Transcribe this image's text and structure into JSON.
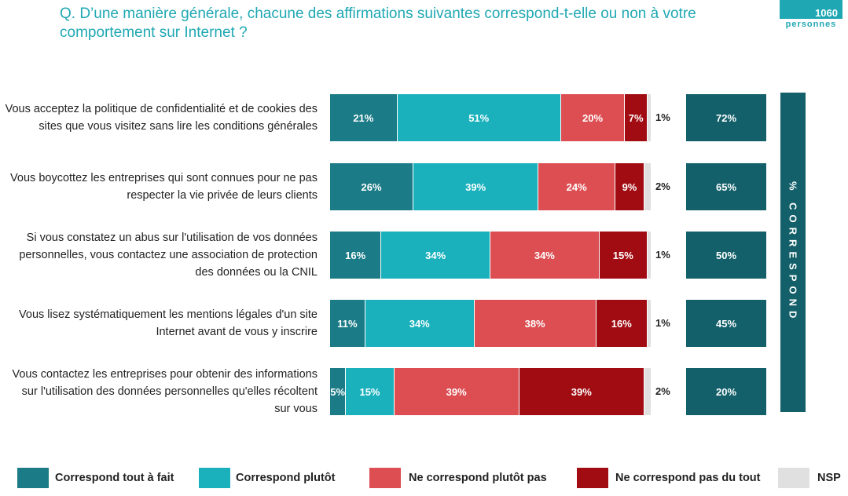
{
  "chart_data": {
    "type": "bar",
    "orientation": "horizontal",
    "stacked": true,
    "title": "Q. D’une manière générale, chacune des affirmations suivantes correspond-t-elle ou non à votre comportement sur Internet ?",
    "badge": {
      "count": "1060",
      "unit": "personnes"
    },
    "categories": [
      "Vous acceptez la politique de confidentialité et de cookies des sites que vous visitez sans lire les conditions générales",
      "Vous boycottez les entreprises qui sont connues pour ne pas respecter la vie privée de leurs clients",
      "Si vous constatez un abus sur l'utilisation de vos données personnelles, vous contactez une association de protection des données ou la CNIL",
      "Vous lisez systématiquement les mentions légales d'un site Internet avant de vous y inscrire",
      "Vous contactez les entreprises pour obtenir des informations sur l'utilisation des données personnelles qu'elles récoltent sur vous"
    ],
    "series": [
      {
        "name": "Correspond tout à fait",
        "color": "#1b7b86",
        "values": [
          21,
          26,
          16,
          11,
          5
        ],
        "value_labels": [
          "21%",
          "26%",
          "16%",
          "11%",
          "5%"
        ]
      },
      {
        "name": "Correspond plutôt",
        "color": "#1ab1bd",
        "values": [
          51,
          39,
          34,
          34,
          15
        ],
        "value_labels": [
          "51%",
          "39%",
          "34%",
          "34%",
          "15%"
        ]
      },
      {
        "name": "Ne correspond plutôt pas",
        "color": "#dc4e52",
        "values": [
          20,
          24,
          34,
          38,
          39
        ],
        "value_labels": [
          "20%",
          "24%",
          "34%",
          "38%",
          "39%"
        ]
      },
      {
        "name": "Ne correspond pas du tout",
        "color": "#a10c12",
        "values": [
          7,
          9,
          15,
          16,
          39
        ],
        "value_labels": [
          "7%",
          "9%",
          "15%",
          "16%",
          "39%"
        ]
      },
      {
        "name": "NSP",
        "color": "#e0e0e0",
        "values": [
          1,
          2,
          1,
          1,
          2
        ],
        "value_labels": [
          "1%",
          "2%",
          "1%",
          "1%",
          "2%"
        ]
      }
    ],
    "total": {
      "title": "% CORRESPOND",
      "color": "#13606a",
      "values": [
        72,
        65,
        50,
        45,
        20
      ],
      "value_labels": [
        "72%",
        "65%",
        "50%",
        "45%",
        "20%"
      ]
    }
  }
}
